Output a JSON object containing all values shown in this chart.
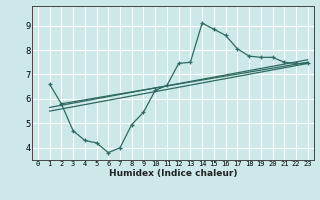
{
  "xlabel": "Humidex (Indice chaleur)",
  "bg_color": "#cce8e8",
  "grid_color": "#ffffff",
  "line_color": "#2e6b5e",
  "xlim": [
    -0.5,
    23.5
  ],
  "ylim": [
    3.5,
    9.8
  ],
  "xticks": [
    0,
    1,
    2,
    3,
    4,
    5,
    6,
    7,
    8,
    9,
    10,
    11,
    12,
    13,
    14,
    15,
    16,
    17,
    18,
    19,
    20,
    21,
    22,
    23
  ],
  "yticks": [
    4,
    5,
    6,
    7,
    8,
    9
  ],
  "line1_x": [
    1,
    2,
    3,
    4,
    5,
    6,
    7,
    8,
    9,
    10,
    11,
    12,
    13,
    14,
    15,
    16,
    17,
    18,
    19,
    20,
    21,
    22,
    23
  ],
  "line1_y": [
    6.6,
    5.8,
    4.7,
    4.3,
    4.2,
    3.8,
    4.0,
    4.95,
    5.45,
    6.35,
    6.55,
    7.45,
    7.5,
    9.1,
    8.85,
    8.6,
    8.05,
    7.75,
    7.7,
    7.7,
    7.5,
    7.45,
    7.45
  ],
  "line2_x": [
    1,
    23
  ],
  "line2_y": [
    5.65,
    7.6
  ],
  "line3_x": [
    1,
    23
  ],
  "line3_y": [
    5.5,
    7.45
  ],
  "line4_x": [
    2,
    23
  ],
  "line4_y": [
    5.8,
    7.5
  ]
}
